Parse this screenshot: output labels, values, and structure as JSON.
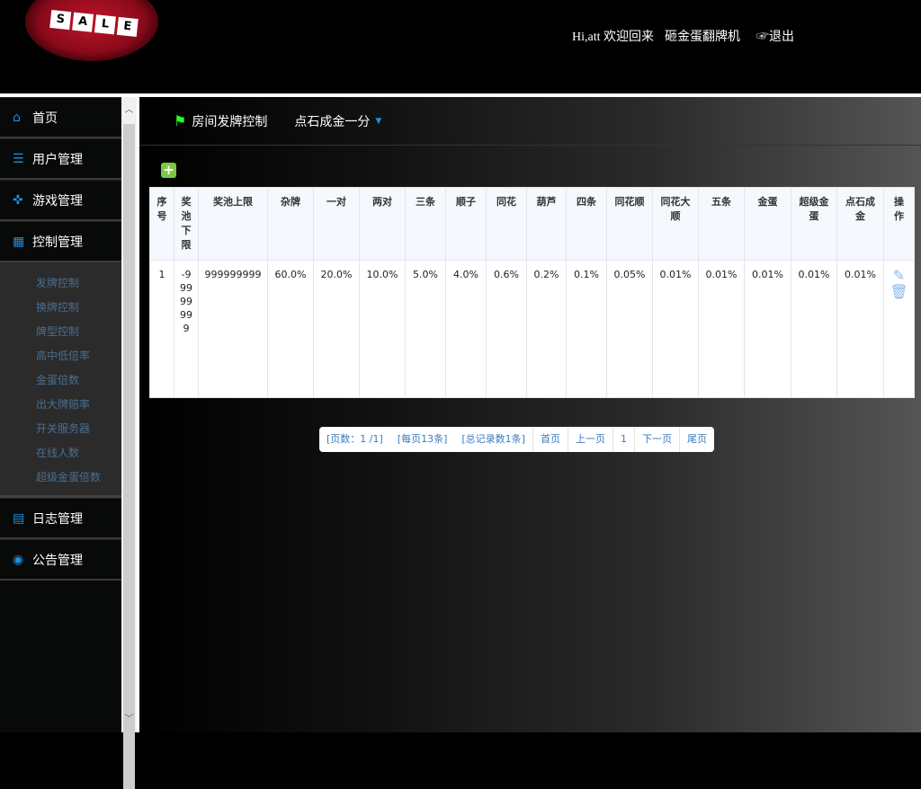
{
  "header": {
    "logo_text": "SALE",
    "greeting": "Hi,att 欢迎回来",
    "app_name": "砸金蛋翻牌机",
    "logout": "☞退出"
  },
  "sidebar": {
    "items": [
      {
        "label": "首页",
        "icon": "home-icon"
      },
      {
        "label": "用户管理",
        "icon": "user-icon"
      },
      {
        "label": "游戏管理",
        "icon": "gamepad-icon"
      },
      {
        "label": "控制管理",
        "icon": "control-icon"
      },
      {
        "label": "日志管理",
        "icon": "log-icon"
      },
      {
        "label": "公告管理",
        "icon": "announcement-icon"
      }
    ],
    "submenu": [
      "发牌控制",
      "换牌控制",
      "牌型控制",
      "高中低倍率",
      "金蛋倍数",
      "出大牌赔率",
      "开关服务器",
      "在线人数",
      "超级金蛋倍数"
    ]
  },
  "tabs": {
    "tab1": "房间发牌控制",
    "tab2": "点石成金一分"
  },
  "table": {
    "headers": [
      "序号",
      "奖池下限",
      "奖池上限",
      "杂牌",
      "一对",
      "两对",
      "三条",
      "顺子",
      "同花",
      "葫芦",
      "四条",
      "同花顺",
      "同花大顺",
      "五条",
      "金蛋",
      "超级金蛋",
      "点石成金",
      "操作"
    ],
    "rows": [
      [
        "1",
        "-99999999",
        "999999999",
        "60.0%",
        "20.0%",
        "10.0%",
        "5.0%",
        "4.0%",
        "0.6%",
        "0.2%",
        "0.1%",
        "0.05%",
        "0.01%",
        "0.01%",
        "0.01%",
        "0.01%",
        "0.01%"
      ]
    ]
  },
  "pager": {
    "pages": "[页数：1 /1]",
    "per_page": "[每页13条]",
    "total": "[总记录数1条]",
    "first": "首页",
    "prev": "上一页",
    "current": "1",
    "next": "下一页",
    "last": "尾页"
  },
  "colors": {
    "accent": "#1d8fe0",
    "link": "#3a7bc0",
    "submenu_text": "#4a6e90"
  }
}
